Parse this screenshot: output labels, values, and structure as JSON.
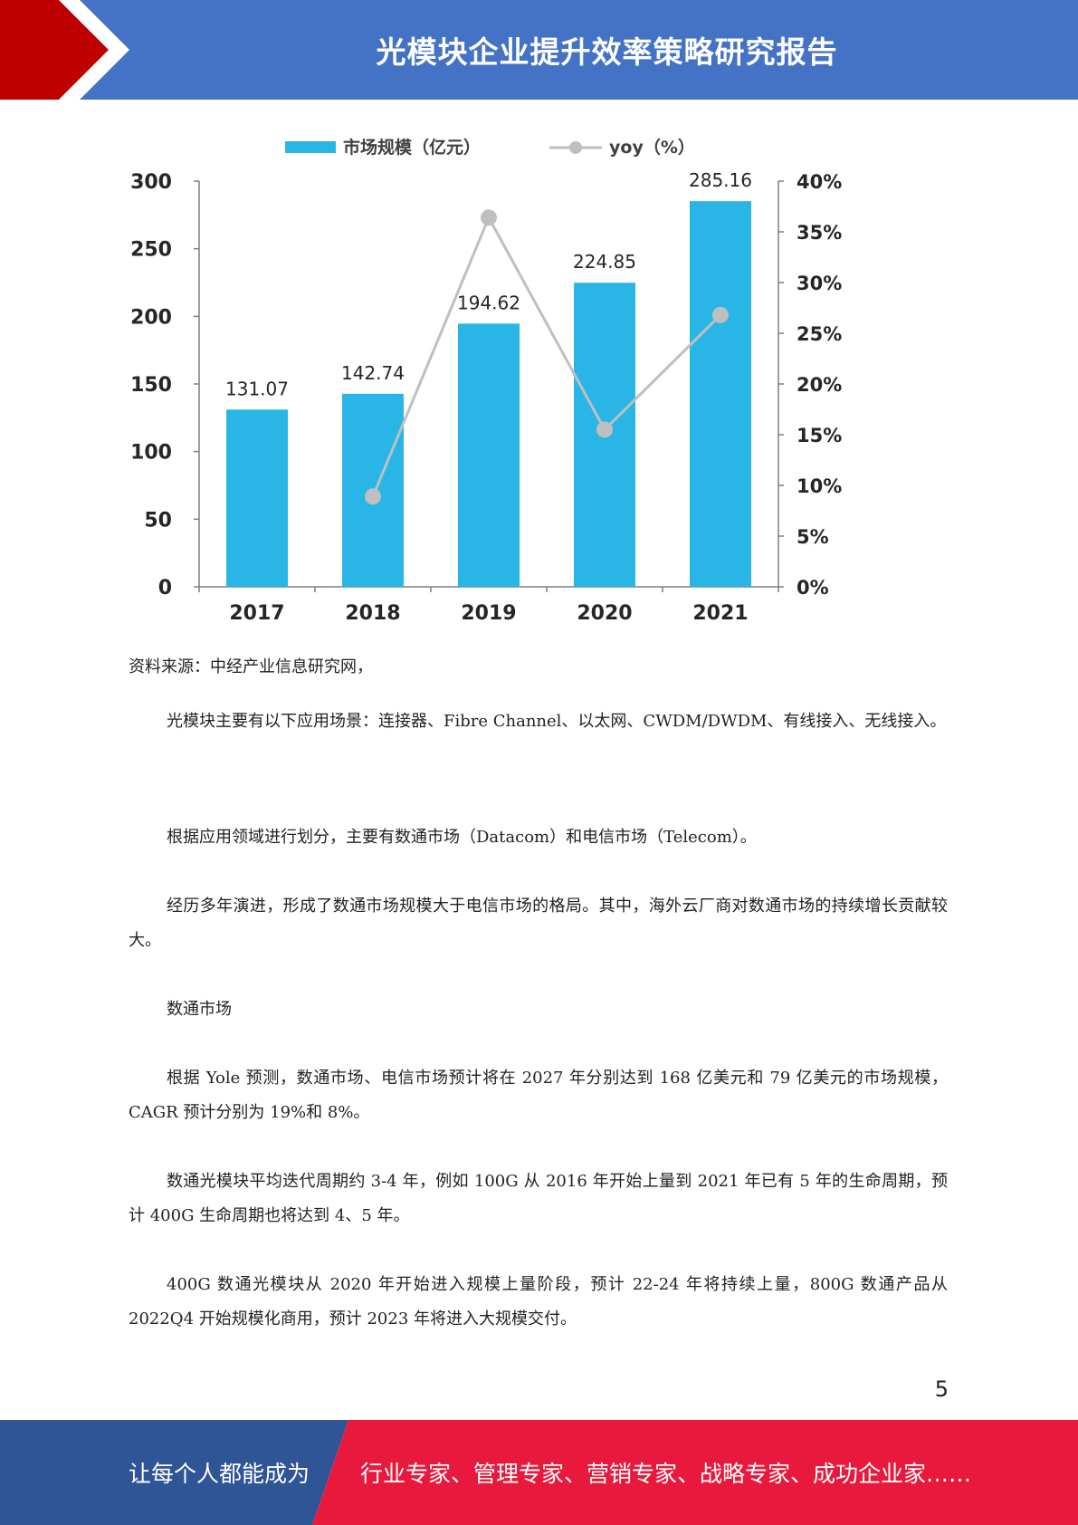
{
  "header": {
    "title": "光模块企业提升效率策略研究报告"
  },
  "chart_data": {
    "type": "bar",
    "categories": [
      "2017",
      "2018",
      "2019",
      "2020",
      "2021"
    ],
    "series": [
      {
        "name": "市场规模（亿元）",
        "type": "bar",
        "axis": "left",
        "values": [
          131.07,
          142.74,
          194.62,
          224.85,
          285.16
        ],
        "color": "#29b6e6"
      },
      {
        "name": "yoy（%）",
        "type": "line",
        "axis": "right",
        "values": [
          null,
          8.9,
          36.4,
          15.5,
          26.8
        ],
        "color": "#bfbfbf"
      }
    ],
    "left_axis": {
      "ticks": [
        "0",
        "50",
        "100",
        "150",
        "200",
        "250",
        "300"
      ],
      "ylim": [
        0,
        300
      ]
    },
    "right_axis": {
      "ticks": [
        "0%",
        "5%",
        "10%",
        "15%",
        "20%",
        "25%",
        "30%",
        "35%",
        "40%"
      ],
      "ylim": [
        0,
        40
      ]
    },
    "data_labels": [
      "131.07",
      "142.74",
      "194.62",
      "224.85",
      "285.16"
    ],
    "legend_position": "top-center"
  },
  "source": "资料来源：中经产业信息研究网，",
  "paragraphs": [
    "光模块主要有以下应用场景：连接器、Fibre Channel、以太网、CWDM/DWDM、有线接入、无线接入。",
    "根据应用领域进行划分，主要有数通市场（Datacom）和电信市场（Telecom）。",
    "经历多年演进，形成了数通市场规模大于电信市场的格局。其中，海外云厂商对数通市场的持续增长贡献较大。",
    "数通市场",
    "根据 Yole 预测，数通市场、电信市场预计将在 2027 年分别达到 168 亿美元和 79 亿美元的市场规模，CAGR 预计分别为 19%和 8%。",
    "数通光模块平均迭代周期约 3-4 年，例如 100G 从 2016 年开始上量到 2021 年已有 5 年的生命周期，预计 400G 生命周期也将达到 4、5 年。",
    "400G 数通光模块从 2020 年开始进入规模上量阶段，预计 22-24 年将持续上量，800G 数通产品从 2022Q4 开始规模化商用，预计 2023 年将进入大规模交付。"
  ],
  "page_number": "5",
  "footer": {
    "left_text": "让每个人都能成为",
    "right_text": "行业专家、管理专家、营销专家、战略专家、成功企业家……"
  },
  "colors": {
    "header_blue": "#4472c4",
    "header_red": "#c00000",
    "footer_blue": "#2f5597",
    "footer_red": "#e8193c"
  }
}
